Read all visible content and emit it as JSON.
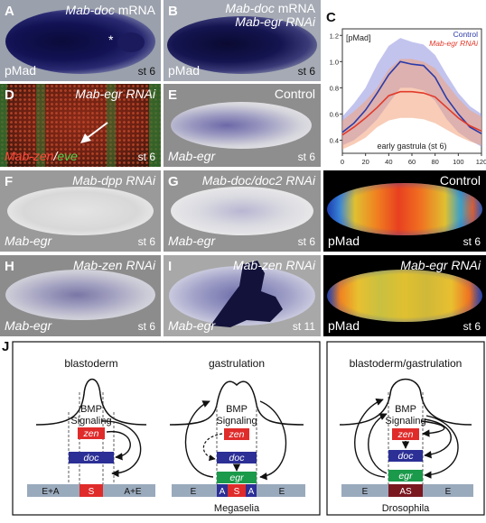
{
  "panels": {
    "A": {
      "letter": "A",
      "title_gene": "Mab-doc",
      "title_rest": " mRNA",
      "stain": "pMad",
      "stage": "st 6",
      "star": "*"
    },
    "B": {
      "letter": "B",
      "title_line1_gene": "Mab-doc",
      "title_line1_rest": " mRNA",
      "title_line2": "Mab-egr RNAi",
      "stain": "pMad",
      "stage": "st 6"
    },
    "D": {
      "letter": "D",
      "title": "Mab-egr RNAi",
      "stain_a": "Mab-zen",
      "stain_sep": "/",
      "stain_b": "eve",
      "stage": "st 6"
    },
    "E": {
      "letter": "E",
      "title": "Control",
      "probe": "Mab-egr",
      "stage": "st 6"
    },
    "F": {
      "letter": "F",
      "title": "Mab-dpp RNAi",
      "probe": "Mab-egr",
      "stage": "st 6"
    },
    "G": {
      "letter": "G",
      "title": "Mab-doc/doc2 RNAi",
      "probe": "Mab-egr",
      "stage": "st 6"
    },
    "H": {
      "letter": "H",
      "title": "Mab-zen RNAi",
      "probe": "Mab-egr",
      "stage": "st 6"
    },
    "I": {
      "letter": "I",
      "title": "Mab-zen RNAi",
      "probe": "Mab-egr",
      "stage": "st 11"
    },
    "pmad_control": {
      "title": "Control",
      "stain": "pMad",
      "stage": "st 6"
    },
    "pmad_rnai": {
      "title": "Mab-egr RNAi",
      "stain": "pMad",
      "stage": "st 6"
    },
    "J": {
      "letter": "J"
    }
  },
  "chart_data": {
    "type": "line",
    "letter": "C",
    "ylabel": "[pMad]",
    "caption": "early gastrula (st 6)",
    "xlim": [
      0,
      120
    ],
    "ylim": [
      0.3,
      1.25
    ],
    "xticks": [
      0,
      20,
      40,
      60,
      80,
      100,
      120
    ],
    "yticks": [
      0.4,
      0.6,
      0.8,
      1.0,
      1.2
    ],
    "legend_position": "top-right",
    "series": [
      {
        "name": "Control",
        "color": "#2b3aa8",
        "band_color": "#8f93e0",
        "x": [
          0,
          10,
          20,
          30,
          40,
          50,
          60,
          70,
          80,
          90,
          100,
          110,
          120
        ],
        "mean": [
          0.46,
          0.53,
          0.63,
          0.76,
          0.9,
          1.0,
          0.98,
          0.97,
          0.88,
          0.72,
          0.6,
          0.5,
          0.45
        ],
        "upper": [
          0.58,
          0.68,
          0.8,
          0.98,
          1.12,
          1.18,
          1.15,
          1.13,
          1.05,
          0.9,
          0.76,
          0.66,
          0.6
        ],
        "lower": [
          0.36,
          0.4,
          0.47,
          0.56,
          0.68,
          0.8,
          0.8,
          0.78,
          0.7,
          0.56,
          0.46,
          0.4,
          0.35
        ]
      },
      {
        "name": "Mab-egr RNAi",
        "color": "#e23a2a",
        "band_color": "#f2a27c",
        "x": [
          0,
          10,
          20,
          30,
          40,
          50,
          60,
          70,
          80,
          90,
          100,
          110,
          120
        ],
        "mean": [
          0.44,
          0.5,
          0.57,
          0.65,
          0.74,
          0.77,
          0.77,
          0.76,
          0.73,
          0.65,
          0.57,
          0.51,
          0.47
        ],
        "upper": [
          0.55,
          0.62,
          0.7,
          0.8,
          0.94,
          1.02,
          1.02,
          1.0,
          0.95,
          0.83,
          0.72,
          0.63,
          0.58
        ],
        "lower": [
          0.33,
          0.37,
          0.42,
          0.5,
          0.55,
          0.57,
          0.57,
          0.56,
          0.53,
          0.48,
          0.43,
          0.39,
          0.36
        ]
      }
    ]
  },
  "schematic": {
    "left": {
      "heading1": "blastoderm",
      "heading2": "gastrulation",
      "bmp1": "BMP",
      "sig1": "Signaling",
      "bmp2": "BMP",
      "sig2": "Signaling",
      "zen": "zen",
      "doc": "doc",
      "egr": "egr",
      "bar1": [
        "E+A",
        "S",
        "A+E"
      ],
      "bar2": [
        "E",
        "A",
        "S",
        "A",
        "E"
      ],
      "caption": "Megaselia"
    },
    "right": {
      "heading": "blastoderm/gastrulation",
      "bmp": "BMP",
      "sig": "Signaling",
      "zen": "zen",
      "doc": "doc",
      "egr": "egr",
      "bar": [
        "E",
        "AS",
        "E"
      ],
      "caption": "Drosophila"
    },
    "colors": {
      "zen": "#e02b2b",
      "doc": "#2b2f96",
      "egr": "#1a9a4a",
      "bar": "#9aaabd"
    }
  }
}
